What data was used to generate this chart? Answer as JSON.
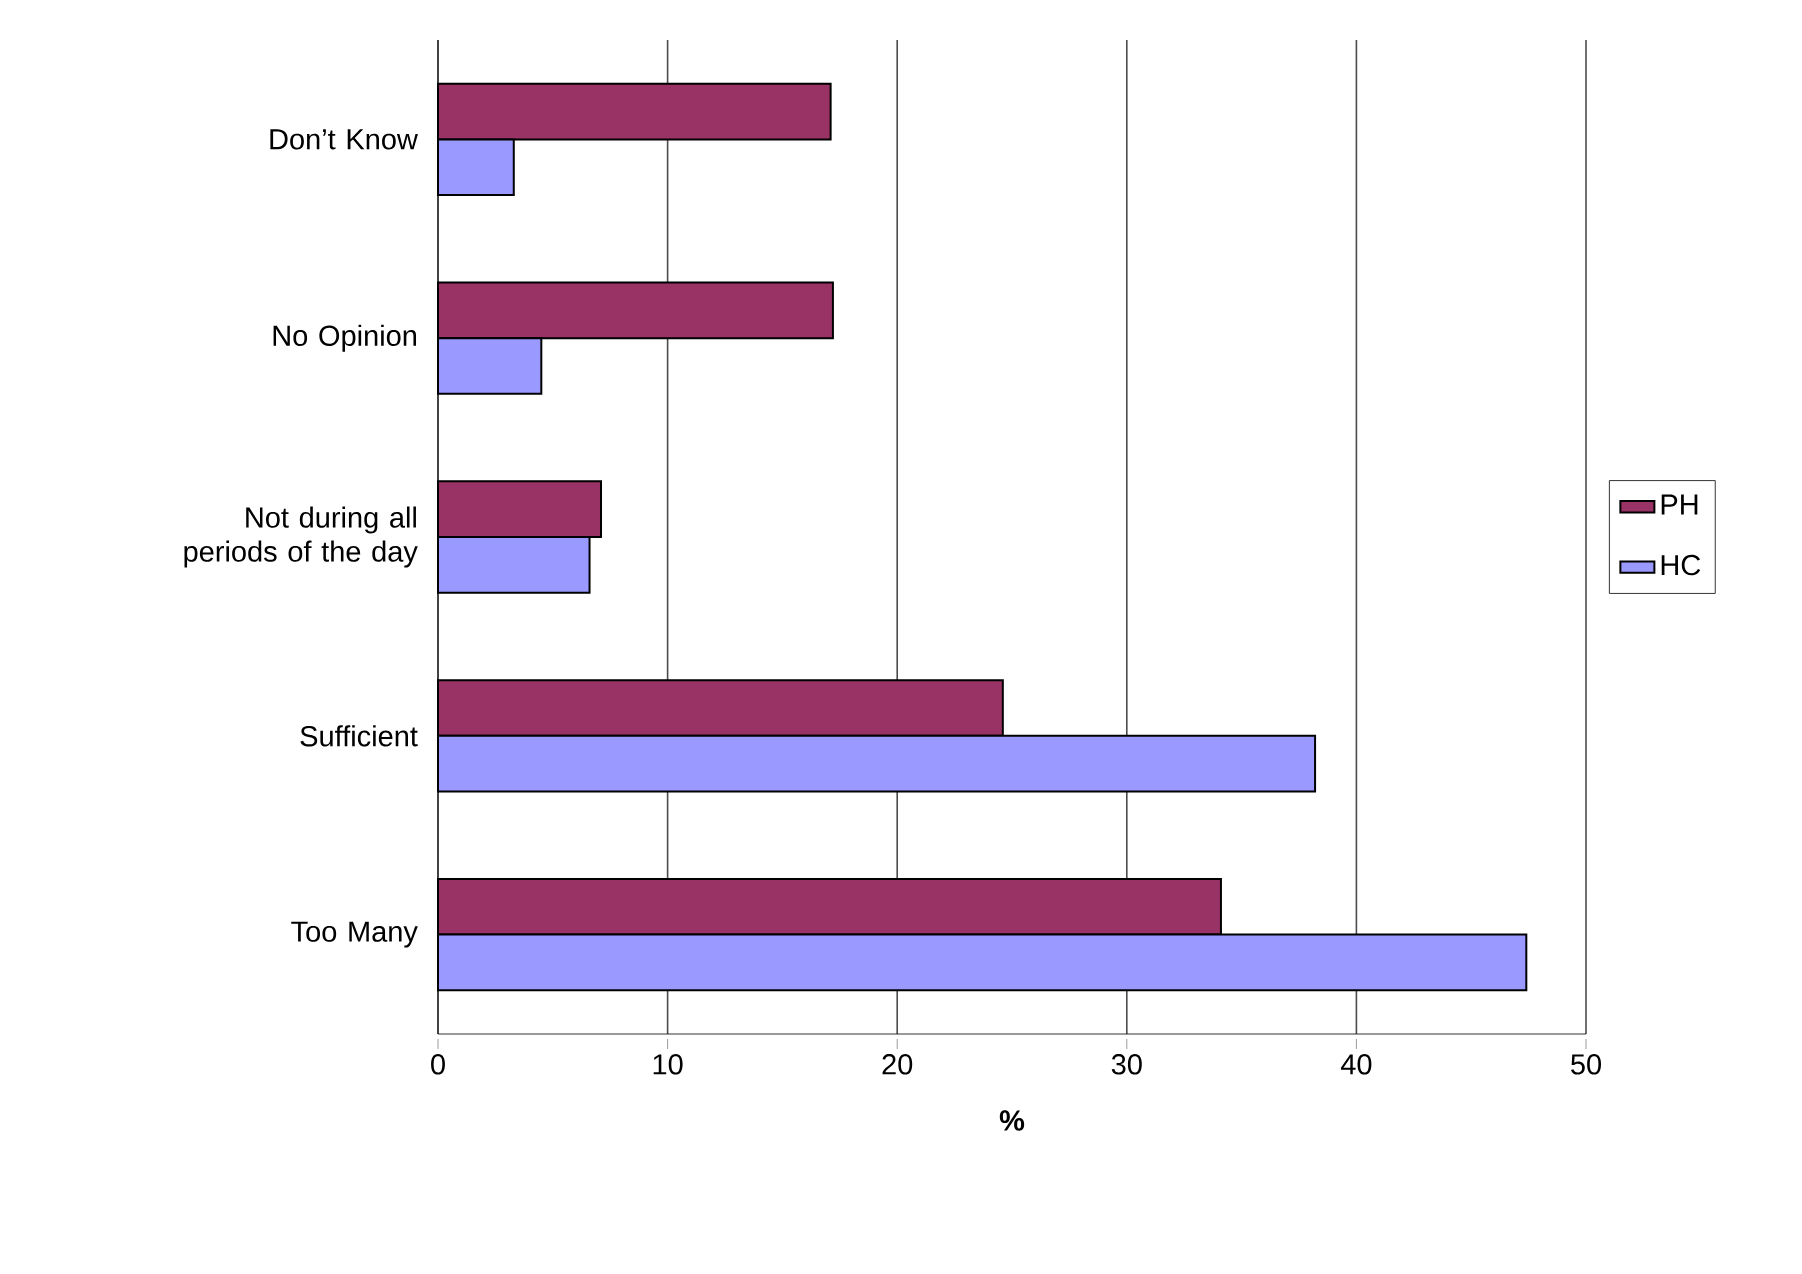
{
  "chart_data": {
    "type": "bar",
    "orientation": "horizontal",
    "categories": [
      "Don’t Know",
      "No Opinion",
      "Not during all periods of the day",
      "Sufficient",
      "Too Many"
    ],
    "series": [
      {
        "name": "PH",
        "color": "#993366",
        "values": [
          17.1,
          17.2,
          7.1,
          24.6,
          34.1
        ]
      },
      {
        "name": "HC",
        "color": "#9999ff",
        "values": [
          3.3,
          4.5,
          6.6,
          38.2,
          47.4
        ]
      }
    ],
    "xlabel": "%",
    "xlim": [
      0,
      50
    ],
    "xticks": [
      0,
      10,
      20,
      30,
      40,
      50
    ],
    "grid": "x",
    "legend": "right"
  }
}
